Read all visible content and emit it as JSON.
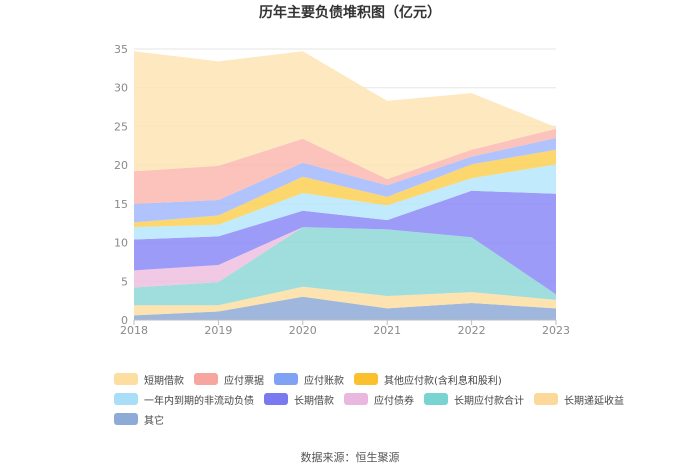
{
  "chart_data": {
    "type": "area",
    "stacked": true,
    "title": "历年主要负债堆积图（亿元）",
    "x": [
      "2018",
      "2019",
      "2020",
      "2021",
      "2022",
      "2023"
    ],
    "ylim": [
      0,
      35
    ],
    "yticks": [
      0,
      5,
      10,
      15,
      20,
      25,
      30,
      35
    ],
    "grid": true,
    "legend_position": "bottom",
    "series": [
      {
        "name": "其它",
        "color": "#8eaad6",
        "values": [
          0.6,
          1.1,
          3.0,
          1.5,
          2.2,
          1.5
        ]
      },
      {
        "name": "长期递延收益",
        "color": "#fddea1",
        "values": [
          1.3,
          0.8,
          1.3,
          1.6,
          1.4,
          1.1
        ]
      },
      {
        "name": "长期应付款合计",
        "color": "#8ed8d6",
        "values": [
          2.3,
          3.0,
          7.7,
          8.6,
          7.1,
          0.7
        ]
      },
      {
        "name": "应付债券",
        "color": "#eec0e1",
        "values": [
          2.2,
          2.2,
          0.0,
          0.0,
          0.0,
          0.0
        ]
      },
      {
        "name": "长期借款",
        "color": "#8c8af7",
        "values": [
          4.0,
          3.7,
          2.1,
          1.2,
          6.0,
          13.0
        ]
      },
      {
        "name": "一年内到期的非流动负债",
        "color": "#b6e6fb",
        "values": [
          1.6,
          1.5,
          2.3,
          1.9,
          1.6,
          3.8
        ]
      },
      {
        "name": "其他应付款(含利息和股利)",
        "color": "#fcd055",
        "values": [
          0.6,
          1.2,
          2.1,
          1.1,
          1.8,
          1.9
        ]
      },
      {
        "name": "应付账款",
        "color": "#a3b9fb",
        "values": [
          2.4,
          2.0,
          1.8,
          1.5,
          1.0,
          1.5
        ]
      },
      {
        "name": "应付票据",
        "color": "#fbb7b0",
        "values": [
          4.2,
          4.4,
          3.1,
          0.8,
          0.9,
          1.2
        ]
      },
      {
        "name": "短期借款",
        "color": "#fde4b5",
        "values": [
          15.5,
          13.5,
          11.3,
          10.1,
          7.3,
          0.2
        ]
      }
    ]
  },
  "legend_order": [
    "短期借款",
    "应付票据",
    "应付账款",
    "其他应付款(含利息和股利)",
    "一年内到期的非流动负债",
    "长期借款",
    "应付债券",
    "长期应付款合计",
    "长期递延收益",
    "其它"
  ],
  "legend_colors": {
    "短期借款": "#fddea1",
    "应付票据": "#f6a69f",
    "应付账款": "#7fa2f4",
    "其他应付款(含利息和股利)": "#fbc02d",
    "一年内到期的非流动负债": "#a8def8",
    "长期借款": "#7b79f0",
    "应付债券": "#e9b7e0",
    "长期应付款合计": "#79d4d1",
    "长期递延收益": "#fcd99a",
    "其它": "#8eaad6"
  },
  "source": "数据来源：恒生聚源"
}
